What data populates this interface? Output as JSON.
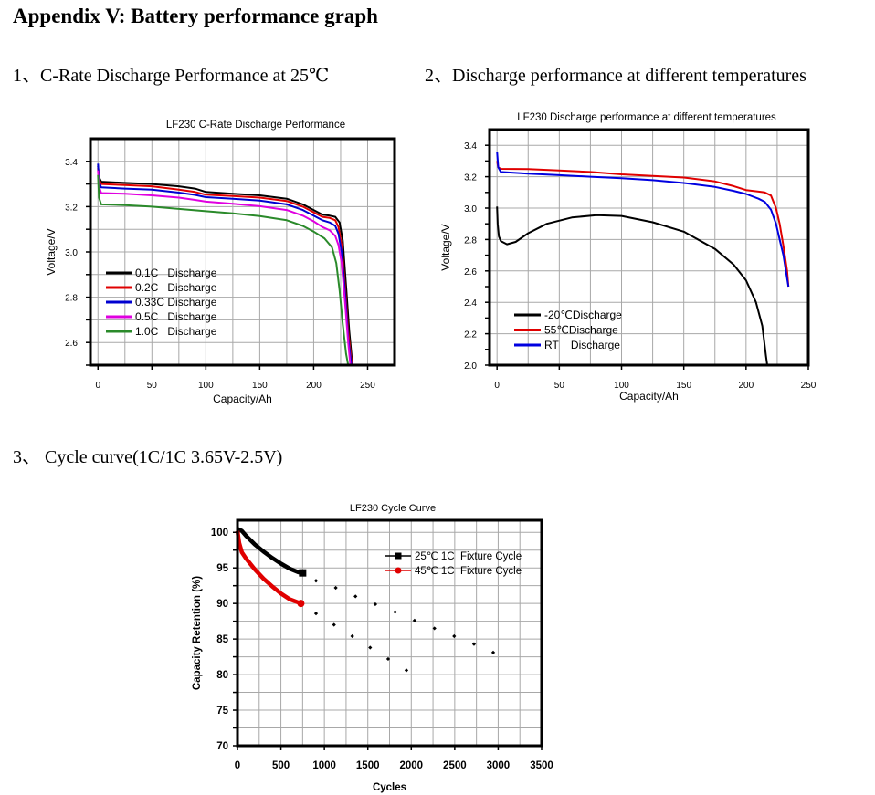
{
  "page": {
    "title": "Appendix V: Battery performance graph",
    "section1": "1、C-Rate Discharge Performance at 25℃",
    "section2": "2、Discharge performance at different temperatures",
    "section3": "3、 Cycle curve(1C/1C 3.65V-2.5V)"
  },
  "chart_data": [
    {
      "type": "line",
      "title": "LF230 C-Rate Discharge Performance",
      "xlabel": "Capacity/Ah",
      "ylabel": "Voltage/V",
      "xlim": [
        -7,
        275
      ],
      "ylim": [
        2.5,
        3.5
      ],
      "xticks": [
        "0",
        "50",
        "100",
        "150",
        "200",
        "250"
      ],
      "yticks": [
        "2.6",
        "2.8",
        "3.0",
        "3.2",
        "3.4"
      ],
      "grid": true,
      "legend": "lower-left",
      "series": [
        {
          "name": "0.1C   Discharge",
          "color": "#000000",
          "x": [
            0,
            1,
            3,
            25,
            50,
            75,
            90,
            100,
            125,
            150,
            175,
            190,
            200,
            208,
            215,
            220,
            224,
            227,
            230,
            233,
            236
          ],
          "y": [
            3.38,
            3.33,
            3.31,
            3.305,
            3.3,
            3.29,
            3.28,
            3.265,
            3.257,
            3.25,
            3.235,
            3.21,
            3.185,
            3.165,
            3.16,
            3.155,
            3.13,
            3.05,
            2.85,
            2.65,
            2.5
          ]
        },
        {
          "name": "0.2C   Discharge",
          "color": "#e00000",
          "x": [
            0,
            1,
            3,
            25,
            50,
            75,
            90,
            100,
            125,
            150,
            175,
            190,
            200,
            208,
            215,
            220,
            223,
            226,
            229,
            232,
            235.5
          ],
          "y": [
            3.37,
            3.32,
            3.3,
            3.295,
            3.29,
            3.275,
            3.265,
            3.253,
            3.247,
            3.24,
            3.225,
            3.2,
            3.175,
            3.155,
            3.15,
            3.14,
            3.11,
            3.03,
            2.85,
            2.65,
            2.5
          ]
        },
        {
          "name": "0.33C Discharge",
          "color": "#0000d0",
          "x": [
            0,
            1,
            3,
            25,
            50,
            75,
            90,
            100,
            125,
            150,
            175,
            190,
            200,
            208,
            215,
            220,
            223,
            226,
            229,
            232,
            235
          ],
          "y": [
            3.39,
            3.31,
            3.285,
            3.28,
            3.275,
            3.262,
            3.252,
            3.242,
            3.235,
            3.227,
            3.21,
            3.185,
            3.16,
            3.14,
            3.13,
            3.115,
            3.08,
            3.0,
            2.82,
            2.62,
            2.5
          ]
        },
        {
          "name": "0.5C   Discharge",
          "color": "#e000e0",
          "x": [
            0,
            1,
            3,
            25,
            50,
            75,
            90,
            100,
            125,
            150,
            175,
            190,
            200,
            208,
            215,
            220,
            223,
            226,
            229,
            232,
            234
          ],
          "y": [
            3.36,
            3.29,
            3.26,
            3.257,
            3.25,
            3.24,
            3.23,
            3.222,
            3.213,
            3.202,
            3.185,
            3.16,
            3.135,
            3.11,
            3.095,
            3.07,
            3.03,
            2.95,
            2.78,
            2.6,
            2.5
          ]
        },
        {
          "name": "1.0C   Discharge",
          "color": "#2a8a2a",
          "x": [
            0,
            1,
            3,
            25,
            50,
            75,
            100,
            125,
            150,
            175,
            190,
            200,
            210,
            217,
            221,
            224,
            227,
            230,
            232
          ],
          "y": [
            3.34,
            3.24,
            3.21,
            3.207,
            3.2,
            3.19,
            3.18,
            3.17,
            3.158,
            3.14,
            3.115,
            3.09,
            3.06,
            3.02,
            2.95,
            2.83,
            2.68,
            2.55,
            2.5
          ]
        }
      ]
    },
    {
      "type": "line",
      "title": "LF230 Discharge performance at different temperatures",
      "xlabel": "Capacity/Ah",
      "ylabel": "Voltage/V",
      "xlim": [
        -6,
        250
      ],
      "ylim": [
        2.0,
        3.5
      ],
      "xticks": [
        "0",
        "50",
        "100",
        "150",
        "200",
        "250"
      ],
      "yticks": [
        "2.0",
        "2.2",
        "2.4",
        "2.6",
        "2.8",
        "3.0",
        "3.2",
        "3.4"
      ],
      "grid": true,
      "legend": "lower-left",
      "series": [
        {
          "name": "-20℃Discharge",
          "color": "#000000",
          "x": [
            0,
            0.5,
            1.5,
            3,
            8,
            15,
            25,
            40,
            60,
            80,
            100,
            125,
            150,
            175,
            190,
            200,
            208,
            213,
            216,
            217
          ],
          "y": [
            3.01,
            2.9,
            2.82,
            2.79,
            2.77,
            2.785,
            2.84,
            2.9,
            2.94,
            2.955,
            2.95,
            2.91,
            2.85,
            2.74,
            2.64,
            2.54,
            2.4,
            2.25,
            2.06,
            2.0
          ]
        },
        {
          "name": "55℃Discharge",
          "color": "#e00000",
          "x": [
            0,
            1,
            3,
            25,
            50,
            75,
            100,
            125,
            150,
            175,
            190,
            200,
            210,
            215,
            220,
            224,
            227,
            230,
            233,
            234
          ],
          "y": [
            3.3,
            3.26,
            3.25,
            3.248,
            3.24,
            3.23,
            3.215,
            3.205,
            3.195,
            3.17,
            3.14,
            3.115,
            3.105,
            3.1,
            3.08,
            3.0,
            2.9,
            2.76,
            2.6,
            2.5
          ]
        },
        {
          "name": "RT    Discharge",
          "color": "#0000e0",
          "x": [
            0,
            1,
            3,
            25,
            50,
            75,
            100,
            125,
            150,
            175,
            190,
            200,
            210,
            215,
            220,
            224,
            227,
            230,
            234
          ],
          "y": [
            3.36,
            3.26,
            3.23,
            3.22,
            3.21,
            3.2,
            3.19,
            3.178,
            3.16,
            3.135,
            3.11,
            3.09,
            3.06,
            3.04,
            2.99,
            2.9,
            2.8,
            2.7,
            2.5
          ]
        }
      ]
    },
    {
      "type": "scatter",
      "title": "LF230 Cycle Curve",
      "xlabel": "Cycles",
      "ylabel": "Capacity Retention (%)",
      "xlim": [
        0,
        3500
      ],
      "ylim": [
        70,
        101.7
      ],
      "xticks": [
        "0",
        "500",
        "1000",
        "1500",
        "2000",
        "2500",
        "3000",
        "3500"
      ],
      "yticks": [
        "70",
        "75",
        "80",
        "85",
        "90",
        "95",
        "100"
      ],
      "grid": true,
      "legend": "top-right",
      "series": [
        {
          "name": "25℃ 1C  Fixture Cycle",
          "color": "#000000",
          "marker": "square",
          "x": [
            0,
            50,
            100,
            200,
            300,
            400,
            500,
            600,
            700,
            750
          ],
          "y": [
            100.5,
            100.2,
            99.5,
            98.3,
            97.3,
            96.4,
            95.6,
            94.9,
            94.4,
            94.3
          ],
          "extrapolated_x": [
            904,
            1131,
            1358,
            1586,
            1814,
            2038,
            2267,
            2494,
            2722,
            2943
          ],
          "extrapolated_y": [
            93.2,
            92.2,
            91.0,
            89.9,
            88.8,
            87.6,
            86.5,
            85.4,
            84.3,
            83.1
          ]
        },
        {
          "name": "45℃ 1C  Fixture Cycle",
          "color": "#e00000",
          "marker": "circle",
          "x": [
            0,
            20,
            50,
            100,
            200,
            300,
            400,
            500,
            600,
            730
          ],
          "y": [
            100.2,
            98.5,
            97.2,
            96.3,
            94.8,
            93.5,
            92.4,
            91.4,
            90.6,
            90.0
          ],
          "extrapolated_x": [
            904,
            1111,
            1321,
            1527,
            1734,
            1944
          ],
          "extrapolated_y": [
            88.6,
            87.0,
            85.4,
            83.8,
            82.2,
            80.6
          ]
        }
      ]
    }
  ]
}
